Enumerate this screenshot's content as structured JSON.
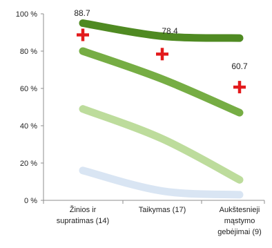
{
  "chart_data": {
    "type": "line",
    "title": "",
    "xlabel": "",
    "ylabel": "",
    "ylim": [
      0,
      100
    ],
    "yticks": [
      "0 %",
      "20 %",
      "40 %",
      "60 %",
      "80 %",
      "100 %"
    ],
    "ytick_values": [
      0,
      20,
      40,
      60,
      80,
      100
    ],
    "categories": [
      [
        "Žinios ir",
        "supratimas (14)"
      ],
      [
        "Taikymas (17)"
      ],
      [
        "Aukštesnieji",
        "mąstymo",
        "gebėjimai (9)"
      ]
    ],
    "series": [
      {
        "values": [
          95,
          88,
          87
        ],
        "color": "#4f8a22"
      },
      {
        "values": [
          80,
          65,
          47
        ],
        "color": "#76ad44"
      },
      {
        "values": [
          49,
          33,
          11
        ],
        "color": "#bddc9c"
      },
      {
        "values": [
          16,
          5,
          3
        ],
        "color": "#d9e5f3"
      }
    ],
    "markers": {
      "values": [
        88.7,
        78.4,
        60.7
      ],
      "labels": [
        "88.7",
        "78.4",
        "60.7"
      ],
      "color": "#e31a1c",
      "shape": "cross"
    },
    "grid": false,
    "legend": "none"
  }
}
